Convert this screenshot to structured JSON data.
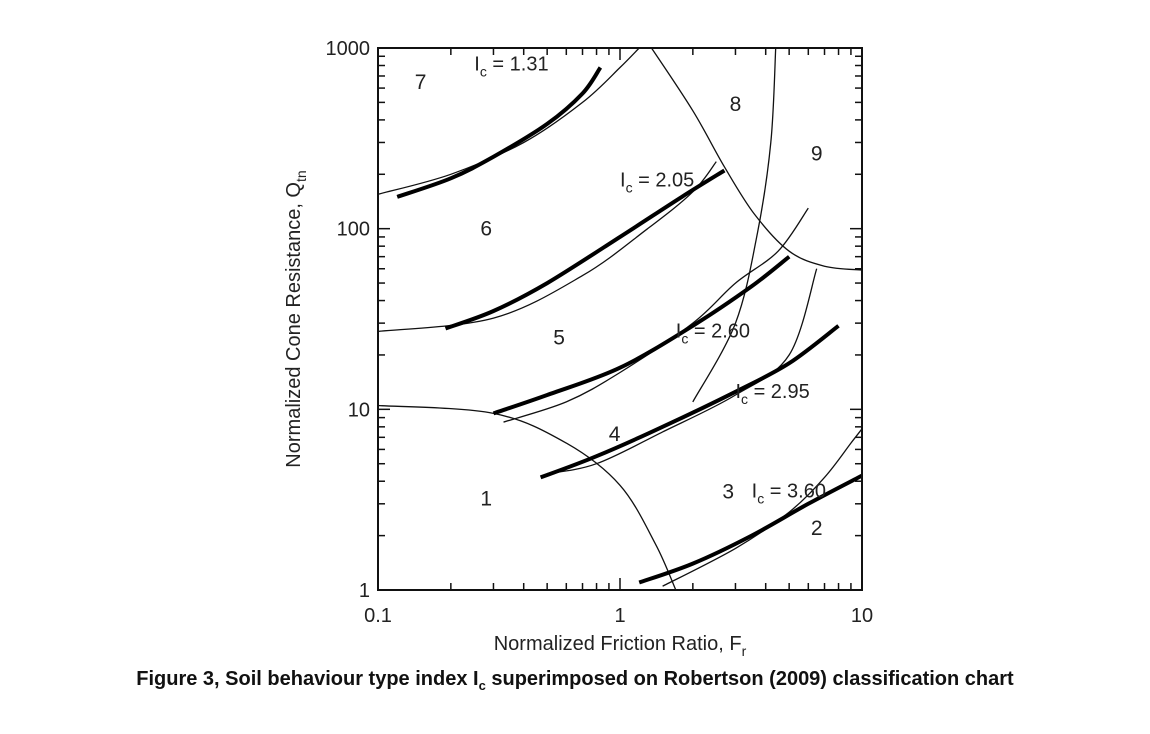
{
  "chart_data": {
    "type": "line",
    "title": "",
    "xlabel": "Normalized Friction Ratio, F",
    "xlabel_sub": "r",
    "ylabel": "Normalized Cone Resistance, Q",
    "ylabel_sub": "tn",
    "xscale": "log",
    "yscale": "log",
    "xlim": [
      0.1,
      10
    ],
    "ylim": [
      1,
      1000
    ],
    "x_ticks": [
      {
        "value": 0.1,
        "label": "0.1"
      },
      {
        "value": 1,
        "label": "1"
      },
      {
        "value": 10,
        "label": "10"
      }
    ],
    "y_ticks": [
      {
        "value": 1,
        "label": "1"
      },
      {
        "value": 10,
        "label": "10"
      },
      {
        "value": 100,
        "label": "100"
      },
      {
        "value": 1000,
        "label": "1000"
      }
    ],
    "grid": false,
    "ic_curves": [
      {
        "label_prefix": "I",
        "label_sub": "c",
        "label_value": " = 1.31",
        "points": [
          [
            0.12,
            150
          ],
          [
            0.2,
            190
          ],
          [
            0.3,
            250
          ],
          [
            0.5,
            380
          ],
          [
            0.7,
            560
          ],
          [
            0.83,
            780
          ]
        ],
        "label_at": [
          0.25,
          810
        ]
      },
      {
        "label_prefix": "I",
        "label_sub": "c",
        "label_value": " = 2.05",
        "points": [
          [
            0.19,
            28
          ],
          [
            0.3,
            35
          ],
          [
            0.5,
            50
          ],
          [
            1.0,
            90
          ],
          [
            1.8,
            150
          ],
          [
            2.7,
            210
          ]
        ],
        "label_at": [
          1.0,
          185
        ]
      },
      {
        "label_prefix": "I",
        "label_sub": "c",
        "label_value": " = 2.60",
        "points": [
          [
            0.3,
            9.5
          ],
          [
            0.5,
            12
          ],
          [
            1.0,
            17
          ],
          [
            2.0,
            29
          ],
          [
            3.5,
            48
          ],
          [
            5.0,
            70
          ]
        ],
        "label_at": [
          1.7,
          27
        ]
      },
      {
        "label_prefix": "I",
        "label_sub": "c",
        "label_value": " = 2.95",
        "points": [
          [
            0.47,
            4.2
          ],
          [
            0.8,
            5.5
          ],
          [
            1.5,
            8
          ],
          [
            3.0,
            12.5
          ],
          [
            5.0,
            18
          ],
          [
            8.0,
            29
          ]
        ],
        "label_at": [
          3.0,
          12.5
        ]
      },
      {
        "label_prefix": "I",
        "label_sub": "c",
        "label_value": " = 3.60",
        "points": [
          [
            1.2,
            1.1
          ],
          [
            2.0,
            1.4
          ],
          [
            3.5,
            2.0
          ],
          [
            6.0,
            3.0
          ],
          [
            10.0,
            4.3
          ]
        ],
        "label_at": [
          3.5,
          3.5
        ]
      }
    ],
    "zone_boundaries": [
      {
        "points": [
          [
            0.1,
            155
          ],
          [
            0.2,
            200
          ],
          [
            0.4,
            300
          ],
          [
            0.7,
            500
          ],
          [
            1.0,
            780
          ],
          [
            1.2,
            1000
          ]
        ]
      },
      {
        "points": [
          [
            0.1,
            27
          ],
          [
            0.3,
            32
          ],
          [
            0.7,
            55
          ],
          [
            1.3,
            100
          ],
          [
            2.0,
            160
          ],
          [
            2.5,
            235
          ]
        ]
      },
      {
        "points": [
          [
            0.33,
            8.5
          ],
          [
            0.6,
            11
          ],
          [
            1.0,
            16
          ],
          [
            2.0,
            30
          ],
          [
            3.0,
            50
          ],
          [
            4.5,
            75
          ],
          [
            6.0,
            130
          ]
        ]
      },
      {
        "points": [
          [
            0.5,
            4.4
          ],
          [
            0.8,
            5
          ],
          [
            1.5,
            7.5
          ],
          [
            3.0,
            12
          ],
          [
            5.0,
            20
          ],
          [
            6.5,
            60
          ]
        ]
      },
      {
        "points": [
          [
            1.5,
            1.05
          ],
          [
            3.0,
            1.7
          ],
          [
            5.0,
            2.7
          ],
          [
            7.0,
            4.2
          ],
          [
            9.0,
            6.5
          ],
          [
            10.0,
            7.8
          ]
        ]
      },
      {
        "points": [
          [
            0.1,
            10.5
          ],
          [
            0.3,
            9.5
          ],
          [
            0.6,
            6.5
          ],
          [
            1.0,
            3.8
          ],
          [
            1.4,
            1.8
          ],
          [
            1.7,
            1.0
          ]
        ]
      },
      {
        "points": [
          [
            1.35,
            1000
          ],
          [
            2.0,
            450
          ],
          [
            2.7,
            220
          ],
          [
            3.6,
            120
          ],
          [
            5.0,
            75
          ],
          [
            7.0,
            62
          ],
          [
            10.0,
            59
          ]
        ]
      },
      {
        "points": [
          [
            2.0,
            11
          ],
          [
            3.0,
            30
          ],
          [
            3.7,
            95
          ],
          [
            4.2,
            300
          ],
          [
            4.4,
            1000
          ]
        ]
      }
    ],
    "zone_labels": [
      {
        "text": "1",
        "at": [
          0.28,
          3.2
        ]
      },
      {
        "text": "2",
        "at": [
          6.5,
          2.2
        ]
      },
      {
        "text": "3",
        "at": [
          2.8,
          3.5
        ]
      },
      {
        "text": "4",
        "at": [
          0.95,
          7.3
        ]
      },
      {
        "text": "5",
        "at": [
          0.56,
          25
        ]
      },
      {
        "text": "6",
        "at": [
          0.28,
          100
        ]
      },
      {
        "text": "7",
        "at": [
          0.15,
          650
        ]
      },
      {
        "text": "8",
        "at": [
          3.0,
          490
        ]
      },
      {
        "text": "9",
        "at": [
          6.5,
          260
        ]
      }
    ]
  },
  "caption": {
    "prefix": "Figure 3, Soil behaviour type index I",
    "sub": "c",
    "suffix": " superimposed on Robertson (2009) classification chart"
  }
}
